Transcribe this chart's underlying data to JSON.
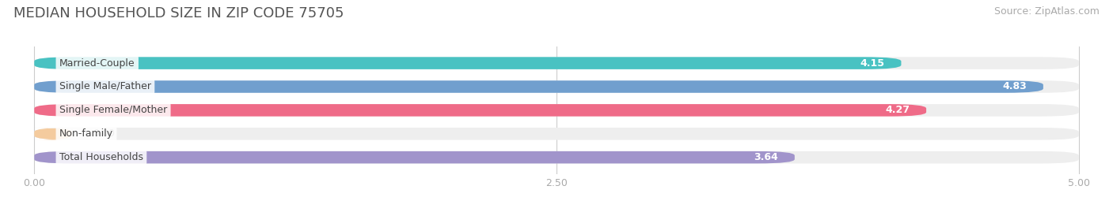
{
  "title": "MEDIAN HOUSEHOLD SIZE IN ZIP CODE 75705",
  "source": "Source: ZipAtlas.com",
  "categories": [
    "Married-Couple",
    "Single Male/Father",
    "Single Female/Mother",
    "Non-family",
    "Total Households"
  ],
  "values": [
    4.15,
    4.83,
    4.27,
    0.0,
    3.64
  ],
  "bar_colors": [
    "#3bbfbf",
    "#6699cc",
    "#f06080",
    "#f5c897",
    "#9b8dc8"
  ],
  "label_text_colors": [
    "#555555",
    "#555555",
    "#555555",
    "#555555",
    "#555555"
  ],
  "background_color": "#ffffff",
  "bar_bg_color": "#eeeeee",
  "xlim_max": 5.0,
  "xtick_labels": [
    "0.00",
    "2.50",
    "5.00"
  ],
  "xtick_values": [
    0.0,
    2.5,
    5.0
  ],
  "title_fontsize": 13,
  "source_fontsize": 9,
  "label_fontsize": 9,
  "value_fontsize": 9,
  "bar_height": 0.52,
  "rounding_size": 0.18
}
